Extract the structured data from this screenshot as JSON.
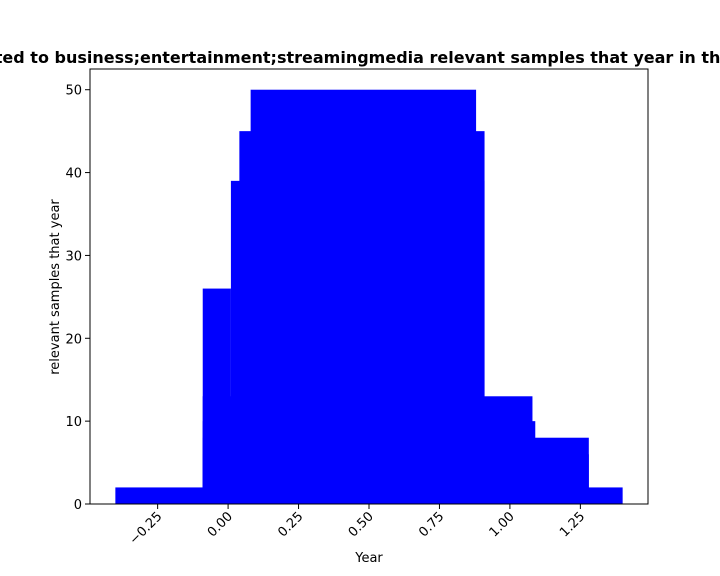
{
  "chart_data": {
    "type": "bar",
    "title": "Year related to business;entertainment;streamingmedia relevant samples that year in the dataset",
    "xlabel": "Year",
    "ylabel": "relevant samples that year",
    "xlim": [
      -0.49,
      1.49
    ],
    "ylim": [
      0,
      52.5
    ],
    "x_ticks": [
      -0.25,
      0.0,
      0.25,
      0.5,
      0.75,
      1.0,
      1.25
    ],
    "x_tick_labels": [
      "−0.25",
      "0.00",
      "0.25",
      "0.50",
      "0.75",
      "1.00",
      "1.25"
    ],
    "y_ticks": [
      0,
      10,
      20,
      30,
      40,
      50
    ],
    "y_tick_labels": [
      "0",
      "10",
      "20",
      "30",
      "40",
      "50"
    ],
    "grid": false,
    "bar_color": "#0000ff",
    "bars": [
      {
        "x0": -0.4,
        "x1": 1.4,
        "y": 2
      },
      {
        "x0": -0.09,
        "x1": 1.28,
        "y": 6
      },
      {
        "x0": -0.09,
        "x1": 1.28,
        "y": 8
      },
      {
        "x0": -0.09,
        "x1": 1.09,
        "y": 10
      },
      {
        "x0": -0.09,
        "x1": 1.08,
        "y": 13
      },
      {
        "x0": -0.09,
        "x1": 0.01,
        "y": 26
      },
      {
        "x0": 0.01,
        "x1": 0.91,
        "y": 39
      },
      {
        "x0": 0.04,
        "x1": 0.91,
        "y": 45
      },
      {
        "x0": 0.08,
        "x1": 0.88,
        "y": 50
      }
    ]
  }
}
